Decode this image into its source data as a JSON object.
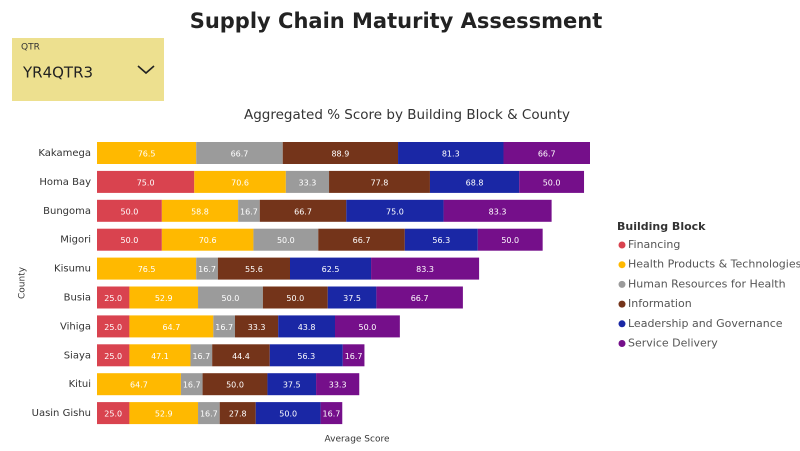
{
  "header": {
    "title": "Supply Chain Maturity Assessment"
  },
  "slicer": {
    "label": "QTR",
    "value": "YR4QTR3"
  },
  "chart_data": {
    "type": "stacked-bar-horizontal",
    "title": "Aggregated % Score by Building Block & County",
    "x_label": "Average Score",
    "y_label": "County",
    "legend_title": "Building Block",
    "categories": [
      "Kakamega",
      "Homa Bay",
      "Bungoma",
      "Migori",
      "Kisumu",
      "Busia",
      "Vihiga",
      "Siaya",
      "Kitui",
      "Uasin Gishu"
    ],
    "series": [
      {
        "name": "Financing",
        "color": "#d9434f",
        "values": [
          null,
          75,
          50,
          50,
          null,
          25,
          25,
          25,
          null,
          25
        ],
        "value_labels": [
          null,
          "75.0",
          "50.0",
          "50.0",
          null,
          "25.0",
          "25.0",
          "25.0",
          null,
          "25.0"
        ]
      },
      {
        "name": "Health Products & Technologies",
        "color": "#ffb900",
        "values": [
          76.5,
          70.6,
          58.8,
          70.6,
          76.5,
          52.9,
          64.7,
          47.1,
          64.7,
          52.9
        ],
        "value_labels": [
          "76.5",
          "70.6",
          "58.8",
          "70.6",
          "76.5",
          "52.9",
          "64.7",
          "47.1",
          "64.7",
          "52.9"
        ]
      },
      {
        "name": "Human Resources for Health",
        "color": "#9b9b9b",
        "values": [
          66.7,
          33.3,
          16.7,
          50,
          16.7,
          50,
          16.7,
          16.7,
          16.7,
          16.7
        ],
        "value_labels": [
          "66.7",
          "33.3",
          "16.7",
          "50.0",
          "16.7",
          "50.0",
          "16.7",
          "16.7",
          "16.7",
          "16.7"
        ]
      },
      {
        "name": "Information",
        "color": "#74341a",
        "values": [
          88.9,
          77.8,
          66.7,
          66.7,
          55.6,
          50,
          33.3,
          44.4,
          50,
          27.8
        ],
        "value_labels": [
          "88.9",
          "77.8",
          "66.7",
          "66.7",
          "55.6",
          "50.0",
          "33.3",
          "44.4",
          "50.0",
          "27.8"
        ]
      },
      {
        "name": "Leadership and Governance",
        "color": "#1a27a5",
        "values": [
          81.3,
          68.8,
          75,
          56.3,
          62.5,
          37.5,
          43.8,
          56.3,
          37.5,
          50
        ],
        "value_labels": [
          "81.3",
          "68.8",
          "75.0",
          "56.3",
          "62.5",
          "37.5",
          "43.8",
          "56.3",
          "37.5",
          "50.0"
        ]
      },
      {
        "name": "Service Delivery",
        "color": "#750f8a",
        "values": [
          66.7,
          50,
          83.3,
          50,
          83.3,
          66.7,
          50,
          16.7,
          33.3,
          16.7
        ],
        "value_labels": [
          "66.7",
          "50.0",
          "83.3",
          "50.0",
          "83.3",
          "66.7",
          "50.0",
          "16.7",
          "33.3",
          "16.7"
        ]
      }
    ]
  }
}
